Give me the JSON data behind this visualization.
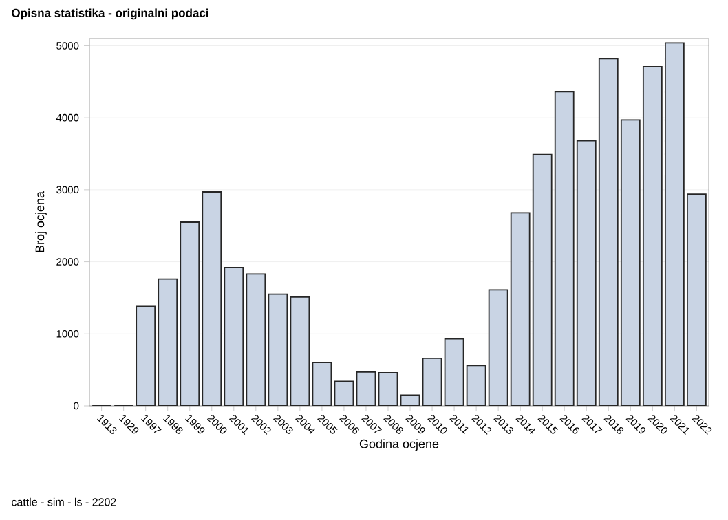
{
  "chart_data": {
    "type": "bar",
    "title": "Opisna statistika - originalni podaci",
    "xlabel": "Godina ocjene",
    "ylabel": "Broj ocjena",
    "categories": [
      "1913",
      "1929",
      "1997",
      "1998",
      "1999",
      "2000",
      "2001",
      "2002",
      "2003",
      "2004",
      "2005",
      "2006",
      "2007",
      "2008",
      "2009",
      "2010",
      "2011",
      "2012",
      "2013",
      "2014",
      "2015",
      "2016",
      "2017",
      "2018",
      "2019",
      "2020",
      "2021",
      "2022"
    ],
    "values": [
      0,
      0,
      1380,
      1760,
      2550,
      2970,
      1920,
      1830,
      1550,
      1510,
      600,
      340,
      470,
      460,
      150,
      660,
      930,
      560,
      1610,
      2680,
      3490,
      4360,
      3680,
      4820,
      3970,
      4710,
      5040,
      2940
    ],
    "color": "#c9d4e4",
    "ylim": [
      0,
      5100
    ],
    "yticks": [
      0,
      1000,
      2000,
      3000,
      4000,
      5000
    ],
    "grid": "y",
    "annotations": [
      "cattle - sim - ls - 2202"
    ]
  }
}
